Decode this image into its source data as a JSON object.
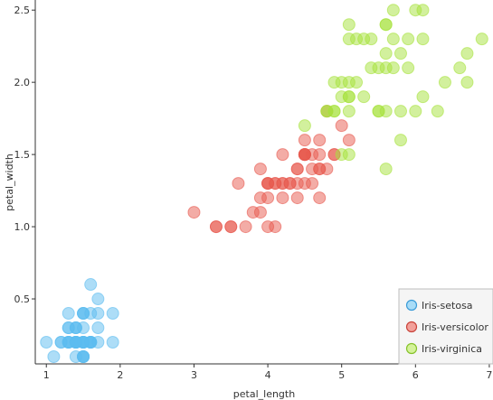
{
  "chart_data": {
    "type": "scatter",
    "xlabel": "petal_length",
    "ylabel": "petal_width",
    "xlim": [
      0.85,
      7.05
    ],
    "ylim": [
      0.05,
      2.57
    ],
    "xticks": [
      "1",
      "2",
      "3",
      "4",
      "5",
      "6",
      "7"
    ],
    "yticks": [
      "0.5",
      "1.0",
      "1.5",
      "2.0",
      "2.5"
    ],
    "grid": false,
    "legend_position": "bottom-right",
    "series": [
      {
        "name": "Iris-setosa",
        "color": "#5bbcf0",
        "points": [
          [
            1.4,
            0.2
          ],
          [
            1.4,
            0.2
          ],
          [
            1.3,
            0.2
          ],
          [
            1.5,
            0.2
          ],
          [
            1.4,
            0.2
          ],
          [
            1.7,
            0.4
          ],
          [
            1.4,
            0.3
          ],
          [
            1.5,
            0.2
          ],
          [
            1.4,
            0.2
          ],
          [
            1.5,
            0.1
          ],
          [
            1.5,
            0.2
          ],
          [
            1.6,
            0.2
          ],
          [
            1.4,
            0.1
          ],
          [
            1.1,
            0.1
          ],
          [
            1.2,
            0.2
          ],
          [
            1.5,
            0.4
          ],
          [
            1.3,
            0.4
          ],
          [
            1.4,
            0.3
          ],
          [
            1.7,
            0.3
          ],
          [
            1.5,
            0.3
          ],
          [
            1.7,
            0.2
          ],
          [
            1.5,
            0.4
          ],
          [
            1.0,
            0.2
          ],
          [
            1.7,
            0.5
          ],
          [
            1.9,
            0.2
          ],
          [
            1.6,
            0.2
          ],
          [
            1.6,
            0.4
          ],
          [
            1.5,
            0.2
          ],
          [
            1.4,
            0.2
          ],
          [
            1.6,
            0.2
          ],
          [
            1.6,
            0.2
          ],
          [
            1.5,
            0.4
          ],
          [
            1.5,
            0.1
          ],
          [
            1.4,
            0.2
          ],
          [
            1.5,
            0.1
          ],
          [
            1.2,
            0.2
          ],
          [
            1.3,
            0.2
          ],
          [
            1.5,
            0.1
          ],
          [
            1.3,
            0.2
          ],
          [
            1.5,
            0.2
          ],
          [
            1.3,
            0.3
          ],
          [
            1.3,
            0.3
          ],
          [
            1.3,
            0.2
          ],
          [
            1.6,
            0.6
          ],
          [
            1.9,
            0.4
          ],
          [
            1.4,
            0.3
          ],
          [
            1.6,
            0.2
          ],
          [
            1.4,
            0.2
          ],
          [
            1.5,
            0.2
          ],
          [
            1.4,
            0.2
          ]
        ]
      },
      {
        "name": "Iris-versicolor",
        "color": "#e8594e",
        "points": [
          [
            4.7,
            1.4
          ],
          [
            4.5,
            1.5
          ],
          [
            4.9,
            1.5
          ],
          [
            4.0,
            1.3
          ],
          [
            4.6,
            1.5
          ],
          [
            4.5,
            1.3
          ],
          [
            4.7,
            1.6
          ],
          [
            3.3,
            1.0
          ],
          [
            4.6,
            1.3
          ],
          [
            3.9,
            1.4
          ],
          [
            3.5,
            1.0
          ],
          [
            4.2,
            1.5
          ],
          [
            4.0,
            1.0
          ],
          [
            4.7,
            1.4
          ],
          [
            3.6,
            1.3
          ],
          [
            4.4,
            1.4
          ],
          [
            4.5,
            1.5
          ],
          [
            4.1,
            1.0
          ],
          [
            4.5,
            1.5
          ],
          [
            3.9,
            1.1
          ],
          [
            4.8,
            1.8
          ],
          [
            4.0,
            1.3
          ],
          [
            4.9,
            1.5
          ],
          [
            4.7,
            1.2
          ],
          [
            4.3,
            1.3
          ],
          [
            4.4,
            1.4
          ],
          [
            4.8,
            1.4
          ],
          [
            5.0,
            1.7
          ],
          [
            4.5,
            1.5
          ],
          [
            3.5,
            1.0
          ],
          [
            3.8,
            1.1
          ],
          [
            3.7,
            1.0
          ],
          [
            3.9,
            1.2
          ],
          [
            5.1,
            1.6
          ],
          [
            4.5,
            1.5
          ],
          [
            4.5,
            1.6
          ],
          [
            4.7,
            1.5
          ],
          [
            4.4,
            1.3
          ],
          [
            4.1,
            1.3
          ],
          [
            4.0,
            1.3
          ],
          [
            4.4,
            1.2
          ],
          [
            4.6,
            1.4
          ],
          [
            4.0,
            1.2
          ],
          [
            3.3,
            1.0
          ],
          [
            4.2,
            1.3
          ],
          [
            4.2,
            1.2
          ],
          [
            4.2,
            1.3
          ],
          [
            4.3,
            1.3
          ],
          [
            3.0,
            1.1
          ],
          [
            4.1,
            1.3
          ]
        ]
      },
      {
        "name": "Iris-virginica",
        "color": "#a6e23c",
        "points": [
          [
            6.0,
            2.5
          ],
          [
            5.1,
            1.9
          ],
          [
            5.9,
            2.1
          ],
          [
            5.6,
            1.8
          ],
          [
            5.8,
            2.2
          ],
          [
            6.6,
            2.1
          ],
          [
            4.5,
            1.7
          ],
          [
            6.3,
            1.8
          ],
          [
            5.8,
            1.8
          ],
          [
            6.1,
            2.5
          ],
          [
            5.1,
            2.0
          ],
          [
            5.3,
            1.9
          ],
          [
            5.5,
            2.1
          ],
          [
            5.0,
            2.0
          ],
          [
            5.1,
            2.4
          ],
          [
            5.3,
            2.3
          ],
          [
            5.5,
            1.8
          ],
          [
            6.7,
            2.2
          ],
          [
            6.9,
            2.3
          ],
          [
            5.0,
            1.5
          ],
          [
            5.7,
            2.3
          ],
          [
            4.9,
            2.0
          ],
          [
            6.7,
            2.0
          ],
          [
            4.9,
            1.8
          ],
          [
            5.7,
            2.1
          ],
          [
            6.0,
            1.8
          ],
          [
            4.8,
            1.8
          ],
          [
            4.9,
            1.8
          ],
          [
            5.6,
            2.1
          ],
          [
            5.8,
            1.6
          ],
          [
            6.1,
            1.9
          ],
          [
            6.4,
            2.0
          ],
          [
            5.6,
            2.2
          ],
          [
            5.1,
            1.5
          ],
          [
            5.6,
            1.4
          ],
          [
            6.1,
            2.3
          ],
          [
            5.6,
            2.4
          ],
          [
            5.5,
            1.8
          ],
          [
            4.8,
            1.8
          ],
          [
            5.4,
            2.1
          ],
          [
            5.6,
            2.4
          ],
          [
            5.1,
            2.3
          ],
          [
            5.1,
            1.9
          ],
          [
            5.9,
            2.3
          ],
          [
            5.7,
            2.5
          ],
          [
            5.2,
            2.3
          ],
          [
            5.0,
            1.9
          ],
          [
            5.2,
            2.0
          ],
          [
            5.4,
            2.3
          ],
          [
            5.1,
            1.8
          ]
        ]
      }
    ]
  }
}
